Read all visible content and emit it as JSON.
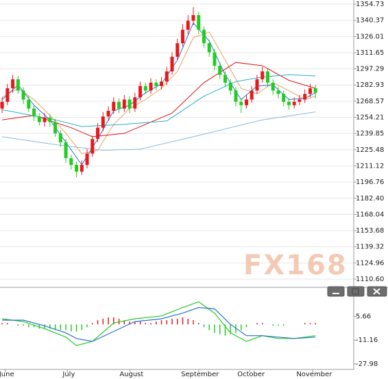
{
  "chart_data": [
    {
      "type": "candlestick",
      "up_color": "#e8191b",
      "down_color": "#22cc22",
      "xlim": [
        -0.4,
        66.2
      ],
      "ylim": [
        1104.5,
        1358.4
      ],
      "yticks": [
        1354.73,
        1340.37,
        1326.01,
        1311.65,
        1297.29,
        1282.93,
        1268.57,
        1254.21,
        1239.85,
        1225.48,
        1211.12,
        1196.76,
        {
          "value": 1182.4,
          "label": "1182.40"
        },
        1168.04,
        1153.68,
        1139.32,
        1124.96,
        {
          "value": 1110.6,
          "label": "1110.60"
        }
      ],
      "grid": true,
      "watermark": "FX168",
      "x": [
        0,
        1,
        2,
        3,
        4,
        5,
        6,
        7,
        8,
        9,
        10,
        11,
        12,
        13,
        14,
        15,
        16,
        17,
        18,
        19,
        20,
        21,
        22,
        23,
        24,
        25,
        26,
        27,
        28,
        29,
        30,
        31,
        32,
        33,
        34,
        35,
        36,
        37,
        38,
        39,
        40,
        41,
        42,
        43,
        44,
        45,
        46,
        47,
        48,
        49,
        50,
        51,
        52,
        53,
        54,
        55,
        56,
        57,
        58,
        59
      ],
      "opens": [
        1262,
        1268,
        1280,
        1288,
        1278,
        1270,
        1262,
        1255,
        1250,
        1254,
        1250,
        1240,
        1232,
        1218,
        1212,
        1206,
        1212,
        1222,
        1235,
        1245,
        1255,
        1260,
        1268,
        1262,
        1270,
        1262,
        1272,
        1282,
        1278,
        1285,
        1282,
        1286,
        1295,
        1308,
        1320,
        1332,
        1340,
        1345,
        1332,
        1320,
        1312,
        1300,
        1292,
        1285,
        1278,
        1268,
        1265,
        1270,
        1278,
        1288,
        1295,
        1285,
        1278,
        1275,
        1268,
        1265,
        1268,
        1270,
        1275,
        1280
      ],
      "highs": [
        1272,
        1284,
        1292,
        1291,
        1281,
        1273,
        1265,
        1258,
        1258,
        1257,
        1253,
        1243,
        1235,
        1221,
        1215,
        1216,
        1226,
        1238,
        1249,
        1259,
        1264,
        1272,
        1271,
        1274,
        1273,
        1276,
        1286,
        1285,
        1289,
        1288,
        1290,
        1299,
        1312,
        1324,
        1337,
        1345,
        1352,
        1348,
        1335,
        1323,
        1315,
        1303,
        1295,
        1288,
        1281,
        1271,
        1274,
        1282,
        1292,
        1299,
        1297,
        1288,
        1281,
        1278,
        1271,
        1272,
        1274,
        1279,
        1284,
        1283
      ],
      "lows": [
        1258,
        1265,
        1276,
        1275,
        1266,
        1259,
        1251,
        1247,
        1246,
        1246,
        1237,
        1228,
        1214,
        1208,
        1201,
        1203,
        1209,
        1219,
        1232,
        1242,
        1251,
        1257,
        1258,
        1259,
        1258,
        1259,
        1269,
        1275,
        1275,
        1278,
        1279,
        1283,
        1292,
        1305,
        1317,
        1328,
        1336,
        1328,
        1316,
        1308,
        1296,
        1288,
        1281,
        1274,
        1264,
        1258,
        1262,
        1267,
        1275,
        1285,
        1281,
        1274,
        1271,
        1264,
        1261,
        1262,
        1265,
        1267,
        1272,
        1271
      ],
      "closes": [
        1268,
        1280,
        1288,
        1278,
        1270,
        1262,
        1255,
        1250,
        1254,
        1250,
        1240,
        1232,
        1218,
        1212,
        1206,
        1212,
        1222,
        1235,
        1245,
        1255,
        1260,
        1268,
        1262,
        1270,
        1262,
        1272,
        1282,
        1278,
        1285,
        1282,
        1286,
        1295,
        1308,
        1320,
        1332,
        1340,
        1345,
        1332,
        1320,
        1312,
        1300,
        1292,
        1285,
        1278,
        1268,
        1265,
        1270,
        1278,
        1288,
        1295,
        1285,
        1278,
        1275,
        1268,
        1265,
        1268,
        1270,
        1275,
        1280,
        1276
      ],
      "ma_lines": [
        {
          "color": "#e8a060",
          "x": [
            0,
            3,
            6,
            9,
            12,
            15,
            18,
            21,
            24,
            27,
            30,
            33,
            36,
            39,
            42,
            45,
            48,
            51,
            54,
            57,
            59
          ],
          "values": [
            1272,
            1280,
            1270,
            1256,
            1240,
            1222,
            1225,
            1248,
            1262,
            1270,
            1280,
            1295,
            1325,
            1330,
            1305,
            1280,
            1275,
            1285,
            1278,
            1270,
            1273
          ]
        },
        {
          "color": "#2a6fd6",
          "x": [
            0,
            3,
            6,
            9,
            12,
            15,
            18,
            21,
            24,
            27,
            30,
            33,
            36,
            39,
            42,
            45,
            48,
            51,
            54,
            57,
            59
          ],
          "values": [
            1270,
            1283,
            1265,
            1252,
            1232,
            1212,
            1235,
            1260,
            1265,
            1276,
            1284,
            1305,
            1338,
            1322,
            1292,
            1270,
            1282,
            1283,
            1270,
            1271,
            1276
          ]
        },
        {
          "color": "#e01010",
          "x": [
            0,
            6,
            13,
            17,
            23,
            32,
            38,
            44,
            49,
            54,
            59
          ],
          "values": [
            1252,
            1256,
            1245,
            1237,
            1240,
            1258,
            1285,
            1303,
            1300,
            1287,
            1280
          ]
        },
        {
          "color": "#25b0c8",
          "x": [
            0,
            10,
            15,
            23,
            31,
            38,
            44,
            49,
            54,
            59
          ],
          "values": [
            1261,
            1252,
            1246,
            1248,
            1251,
            1273,
            1286,
            1290,
            1292,
            1291
          ]
        },
        {
          "color": "#88b8e0",
          "x": [
            0,
            10,
            19,
            26,
            36,
            49,
            59
          ],
          "values": [
            1237,
            1230,
            1225,
            1226,
            1237,
            1252,
            1259
          ]
        }
      ]
    },
    {
      "type": "macd",
      "xlim": [
        -0.4,
        66.2
      ],
      "ylim": [
        -31.9,
        19.5
      ],
      "yticks": [
        5.66,
        -11.16,
        -27.98
      ],
      "xticks": [
        {
          "value": 0.6,
          "label": "June"
        },
        {
          "value": 12.3,
          "label": "July"
        },
        {
          "value": 24.1,
          "label": "August"
        },
        {
          "value": 37,
          "label": "September"
        },
        {
          "value": 46.6,
          "label": "October"
        },
        {
          "value": 58.5,
          "label": "November"
        }
      ],
      "lines": [
        {
          "color": "#22cc22",
          "x": [
            0,
            4,
            8,
            12,
            14,
            17,
            21,
            25,
            30,
            34,
            37,
            40,
            43,
            46,
            49,
            52,
            55,
            59
          ],
          "values": [
            4,
            2,
            -3,
            -9,
            -15,
            -12,
            1,
            4,
            6,
            12,
            16,
            8,
            -6,
            -12,
            -8,
            -10,
            -10,
            -8
          ]
        },
        {
          "color": "#2a6fd6",
          "x": [
            0,
            4,
            8,
            12,
            14,
            17,
            21,
            25,
            30,
            34,
            37,
            40,
            43,
            46,
            49,
            52,
            55,
            59
          ],
          "values": [
            3,
            3,
            -1,
            -6,
            -10,
            -12,
            -5,
            2,
            4,
            8,
            12,
            11,
            0,
            -8,
            -8,
            -9,
            -10,
            -9
          ]
        }
      ],
      "hist_pos_color": "#e8191b",
      "hist_neg_color": "#22cc22",
      "histogram": [
        1,
        1,
        0,
        -1,
        -1,
        -2,
        -2,
        -3,
        -3,
        -3,
        -4,
        -4,
        -4,
        -5,
        -5,
        -4,
        -2,
        1,
        3,
        4,
        5,
        5,
        4,
        3,
        2,
        2,
        2,
        1,
        1,
        2,
        3,
        3,
        4,
        4,
        5,
        4,
        3,
        1,
        -2,
        -4,
        -6,
        -7,
        -8,
        -7,
        -6,
        -4,
        -2,
        0,
        1,
        1,
        0,
        -1,
        -1,
        -1,
        0,
        0,
        0,
        1,
        1,
        1
      ]
    }
  ]
}
